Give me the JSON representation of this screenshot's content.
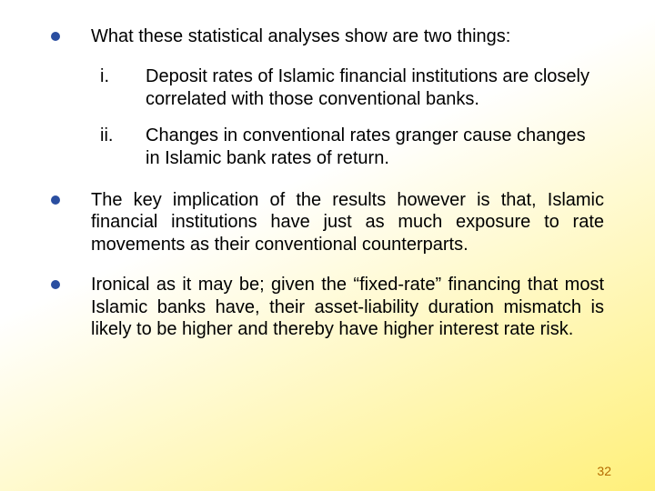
{
  "slide": {
    "background_gradient": {
      "from": "#ffffff",
      "to": "#fff07a",
      "angle_deg": 155
    },
    "bullet_color": "#2a4ea0",
    "text_color": "#000000",
    "font_family": "Arial",
    "body_fontsize_pt": 20,
    "pagenum_fontsize_pt": 14,
    "pagenum_color": "#b46b00",
    "page_number": "32",
    "bullets": [
      {
        "text": "What these statistical analyses show are two things:",
        "justify": false,
        "sub": [
          {
            "marker": "i.",
            "text": "Deposit rates of Islamic financial institutions are closely correlated with those conventional banks."
          },
          {
            "marker": "ii.",
            "text": "Changes in conventional rates granger cause changes in Islamic bank rates of return."
          }
        ]
      },
      {
        "text": "The key implication of the results however is that, Islamic financial institutions have just as much exposure to rate movements as their conventional counterparts.",
        "justify": true
      },
      {
        "text": "Ironical as it may be; given the “fixed-rate” financing that most Islamic banks have, their asset-liability duration mismatch is likely  to be higher and thereby have higher interest rate risk.",
        "justify": true
      }
    ]
  }
}
